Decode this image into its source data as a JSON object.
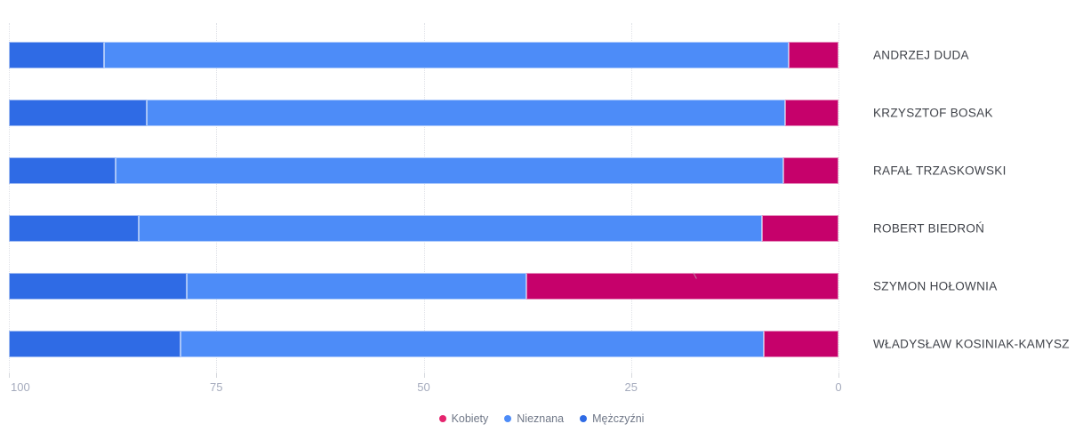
{
  "chart_data": {
    "type": "bar",
    "orientation": "horizontal",
    "stacked": true,
    "title": "",
    "xlabel": "",
    "ylabel": "",
    "categories": [
      "ANDRZEJ DUDA",
      "KRZYSZTOF BOSAK",
      "RAFAŁ TRZASKOWSKI",
      "ROBERT BIEDROŃ",
      "SZYMON HOŁOWNIA",
      "WŁADYSŁAW KOSINIAK-KAMYSZ"
    ],
    "series": [
      {
        "key": "mezczyzni",
        "name": "Mężczyźni",
        "color": "#2f6be5",
        "values": [
          11.5,
          16.6,
          12.9,
          15.6,
          21.4,
          20.7
        ]
      },
      {
        "key": "nieznana",
        "name": "Nieznana",
        "color": "#4d8cf8",
        "values": [
          82.5,
          77.0,
          80.5,
          75.2,
          41.0,
          70.3
        ]
      },
      {
        "key": "kobiety",
        "name": "Kobiety",
        "color": "#c6016b",
        "values": [
          6.0,
          6.4,
          6.6,
          9.2,
          37.6,
          9.0
        ]
      }
    ],
    "x_axis": {
      "min": 0,
      "max": 100,
      "reversed": true,
      "ticks": [
        "100",
        "75",
        "50",
        "25",
        "0"
      ]
    },
    "legend_position": "bottom",
    "grid": true,
    "legend": [
      {
        "key": "kobiety",
        "label": "Kobiety",
        "color": "#e5246e"
      },
      {
        "key": "nieznana",
        "label": "Nieznana",
        "color": "#4d8cf8"
      },
      {
        "key": "mezczyzni",
        "label": "Mężczyźni",
        "color": "#2f6be5"
      }
    ]
  }
}
